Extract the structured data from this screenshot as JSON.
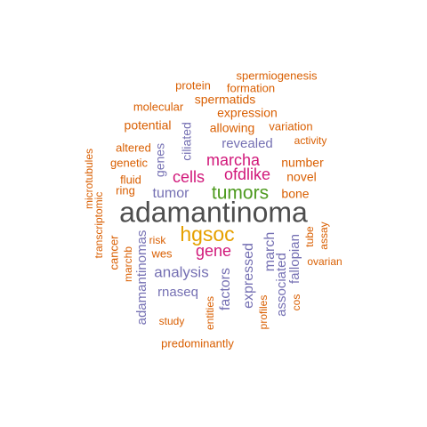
{
  "palette": {
    "gray": "#4d4d4d",
    "gold": "#e6a000",
    "green": "#4d9a1e",
    "magenta": "#d1187a",
    "purple": "#7570b3",
    "orange": "#d95f02"
  },
  "words": [
    {
      "text": "adamantinoma",
      "color": "gray"
    },
    {
      "text": "hgsoc",
      "color": "gold"
    },
    {
      "text": "tumors",
      "color": "green"
    },
    {
      "text": "cells",
      "color": "magenta"
    },
    {
      "text": "ofdlike",
      "color": "magenta"
    },
    {
      "text": "marcha",
      "color": "magenta"
    },
    {
      "text": "gene",
      "color": "magenta"
    },
    {
      "text": "analysis",
      "color": "purple"
    },
    {
      "text": "tumor",
      "color": "purple"
    },
    {
      "text": "revealed",
      "color": "purple"
    },
    {
      "text": "expressed",
      "color": "purple"
    },
    {
      "text": "march",
      "color": "purple"
    },
    {
      "text": "factors",
      "color": "purple"
    },
    {
      "text": "associated",
      "color": "purple"
    },
    {
      "text": "fallopian",
      "color": "purple"
    },
    {
      "text": "adamantinomas",
      "color": "purple"
    },
    {
      "text": "rnaseq",
      "color": "purple"
    },
    {
      "text": "genes",
      "color": "purple"
    },
    {
      "text": "ciliated",
      "color": "purple"
    },
    {
      "text": "expression",
      "color": "orange"
    },
    {
      "text": "potential",
      "color": "orange"
    },
    {
      "text": "allowing",
      "color": "orange"
    },
    {
      "text": "spermatids",
      "color": "orange"
    },
    {
      "text": "number",
      "color": "orange"
    },
    {
      "text": "novel",
      "color": "orange"
    },
    {
      "text": "bone",
      "color": "orange"
    },
    {
      "text": "variation",
      "color": "orange"
    },
    {
      "text": "genetic",
      "color": "orange"
    },
    {
      "text": "fluid",
      "color": "orange"
    },
    {
      "text": "ring",
      "color": "orange"
    },
    {
      "text": "cancer",
      "color": "orange"
    },
    {
      "text": "wes",
      "color": "orange"
    },
    {
      "text": "risk",
      "color": "orange"
    },
    {
      "text": "marchb",
      "color": "orange"
    },
    {
      "text": "transcriptomic",
      "color": "orange"
    },
    {
      "text": "microtubules",
      "color": "orange"
    },
    {
      "text": "altered",
      "color": "orange"
    },
    {
      "text": "molecular",
      "color": "orange"
    },
    {
      "text": "protein",
      "color": "orange"
    },
    {
      "text": "formation",
      "color": "orange"
    },
    {
      "text": "spermiogenesis",
      "color": "orange"
    },
    {
      "text": "activity",
      "color": "orange"
    },
    {
      "text": "tube",
      "color": "orange"
    },
    {
      "text": "assay",
      "color": "orange"
    },
    {
      "text": "ovarian",
      "color": "orange"
    },
    {
      "text": "cos",
      "color": "orange"
    },
    {
      "text": "profiles",
      "color": "orange"
    },
    {
      "text": "entities",
      "color": "orange"
    },
    {
      "text": "study",
      "color": "orange"
    },
    {
      "text": "predominantly",
      "color": "orange"
    }
  ]
}
